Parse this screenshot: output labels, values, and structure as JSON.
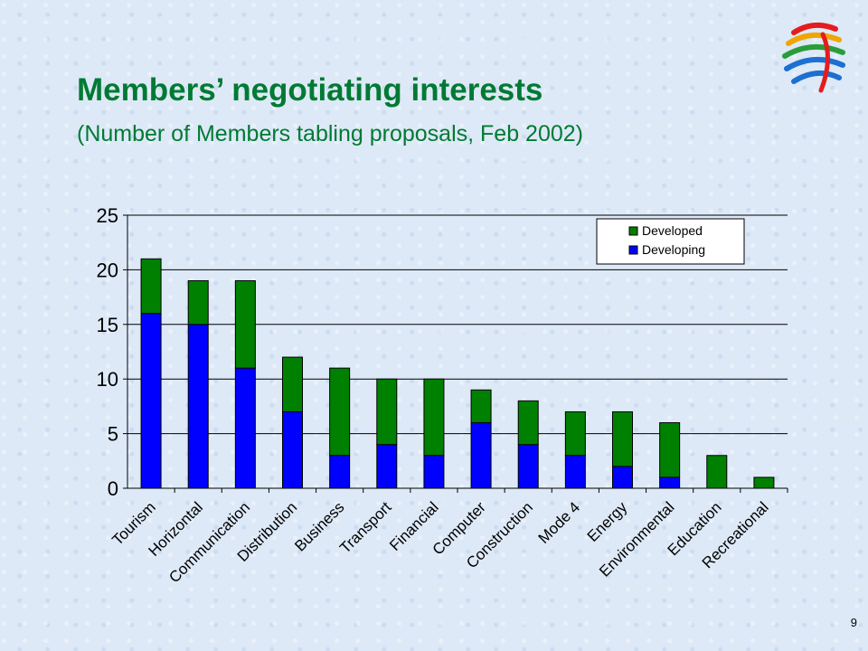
{
  "slide": {
    "title": "Members’ negotiating interests",
    "subtitle": "(Number of Members tabling proposals, Feb 2002)",
    "page_number": "9",
    "logo_icon": "wto-logo-icon"
  },
  "colors": {
    "title": "#007a33",
    "developed": "#008000",
    "developing": "#0000ff"
  },
  "chart_data": {
    "type": "bar",
    "stacked": true,
    "categories": [
      "Tourism",
      "Horizontal",
      "Communication",
      "Distribution",
      "Business",
      "Transport",
      "Financial",
      "Computer",
      "Construction",
      "Mode 4",
      "Energy",
      "Environmental",
      "Education",
      "Recreational"
    ],
    "series": [
      {
        "name": "Developing",
        "color": "#0000ff",
        "values": [
          16,
          15,
          11,
          7,
          3,
          4,
          3,
          6,
          4,
          3,
          2,
          1,
          0,
          0
        ]
      },
      {
        "name": "Developed",
        "color": "#008000",
        "values": [
          5,
          4,
          8,
          5,
          8,
          6,
          7,
          3,
          4,
          4,
          5,
          5,
          3,
          1
        ]
      }
    ],
    "legend": [
      "Developed",
      "Developing"
    ],
    "legend_position": "top-right",
    "ylim": [
      0,
      25
    ],
    "yticks": [
      0,
      5,
      10,
      15,
      20,
      25
    ],
    "grid": true,
    "xlabel": "",
    "ylabel": ""
  }
}
